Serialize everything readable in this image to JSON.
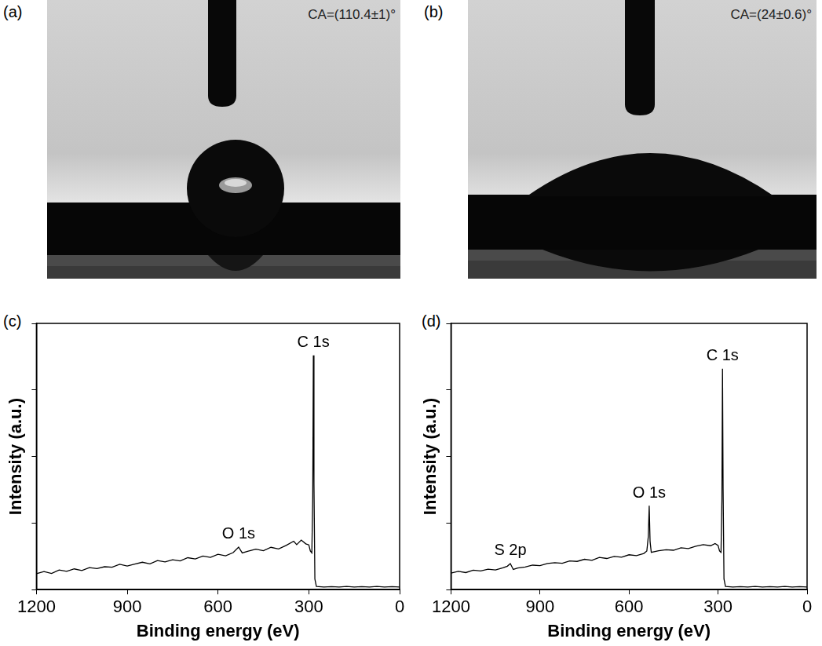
{
  "photos": [
    {
      "panel": "(a)",
      "caption": "CA=(110.4±1)°"
    },
    {
      "panel": "(b)",
      "caption": "CA=(24±0.6)°"
    }
  ],
  "chart_data": [
    {
      "panel": "(c)",
      "type": "line",
      "color": "#000000",
      "grid": false,
      "tick_labels": "x",
      "x_label": "Binding energy (eV)",
      "y_label": "Intensity (a.u.)",
      "xlim": [
        1200,
        0
      ],
      "xticks": [
        1200,
        900,
        600,
        300,
        0
      ],
      "ylim": [
        0,
        100
      ],
      "yticks": [
        0,
        25,
        50,
        75,
        100
      ],
      "x": [
        1200,
        1175,
        1150,
        1125,
        1100,
        1075,
        1050,
        1025,
        1000,
        975,
        950,
        925,
        900,
        875,
        850,
        825,
        800,
        775,
        750,
        725,
        700,
        675,
        650,
        625,
        600,
        575,
        550,
        532,
        520,
        500,
        475,
        450,
        425,
        400,
        375,
        350,
        340,
        325,
        310,
        300,
        295,
        290,
        287,
        285,
        283,
        280,
        275,
        250,
        225,
        200,
        175,
        150,
        125,
        100,
        75,
        50,
        25,
        0
      ],
      "values": [
        6.0,
        6.8,
        6.1,
        7.4,
        6.9,
        7.8,
        7.2,
        8.3,
        7.9,
        8.6,
        8.4,
        9.5,
        8.9,
        9.6,
        10.3,
        9.7,
        10.9,
        10.4,
        11.2,
        10.8,
        12.0,
        11.5,
        12.6,
        12.1,
        13.3,
        12.7,
        13.9,
        16.0,
        13.8,
        14.5,
        15.2,
        14.6,
        15.9,
        15.3,
        16.6,
        18.2,
        16.9,
        18.6,
        17.2,
        16.8,
        14.5,
        13.8,
        35,
        88,
        40,
        4,
        1.2,
        1.0,
        1.1,
        1.0,
        1.2,
        1.0,
        1.1,
        1.0,
        1.2,
        1.0,
        1.1,
        1.0
      ],
      "annotations": [
        {
          "text": "C 1s",
          "x": 285
        },
        {
          "text": "O 1s",
          "x": 532
        }
      ]
    },
    {
      "panel": "(d)",
      "type": "line",
      "color": "#000000",
      "grid": false,
      "tick_labels": "x",
      "x_label": "Binding energy (eV)",
      "y_label": "Intensity (a.u.)",
      "xlim": [
        1200,
        0
      ],
      "xticks": [
        1200,
        900,
        600,
        300,
        0
      ],
      "ylim": [
        0,
        100
      ],
      "yticks": [
        0,
        25,
        50,
        75,
        100
      ],
      "x": [
        1200,
        1175,
        1150,
        1125,
        1100,
        1075,
        1050,
        1025,
        1010,
        1000,
        990,
        975,
        950,
        925,
        900,
        875,
        850,
        825,
        800,
        775,
        750,
        725,
        700,
        675,
        650,
        625,
        600,
        575,
        550,
        540,
        535,
        532,
        529,
        525,
        500,
        475,
        450,
        425,
        400,
        375,
        350,
        325,
        310,
        300,
        295,
        290,
        287,
        285,
        283,
        280,
        275,
        250,
        225,
        200,
        175,
        150,
        125,
        100,
        75,
        50,
        25,
        0
      ],
      "values": [
        6.2,
        6.9,
        6.4,
        7.3,
        7.0,
        7.7,
        7.4,
        8.2,
        8.8,
        9.8,
        7.6,
        8.1,
        8.5,
        9.2,
        9.0,
        9.8,
        10.1,
        9.9,
        10.8,
        10.6,
        11.4,
        11.0,
        12.1,
        11.7,
        12.5,
        12.2,
        13.1,
        12.8,
        13.6,
        14.5,
        20,
        31.5,
        18,
        14,
        14.6,
        15.0,
        14.8,
        15.7,
        15.4,
        16.3,
        16.9,
        16.5,
        17.3,
        16.6,
        14.5,
        14.0,
        34,
        83,
        38,
        4,
        1.2,
        1.0,
        1.1,
        1.0,
        1.2,
        1.0,
        1.1,
        1.0,
        1.2,
        1.0,
        1.1,
        1.0
      ],
      "annotations": [
        {
          "text": "C 1s",
          "x": 285
        },
        {
          "text": "O 1s",
          "x": 532
        },
        {
          "text": "S 2p",
          "x": 1000
        }
      ]
    }
  ]
}
